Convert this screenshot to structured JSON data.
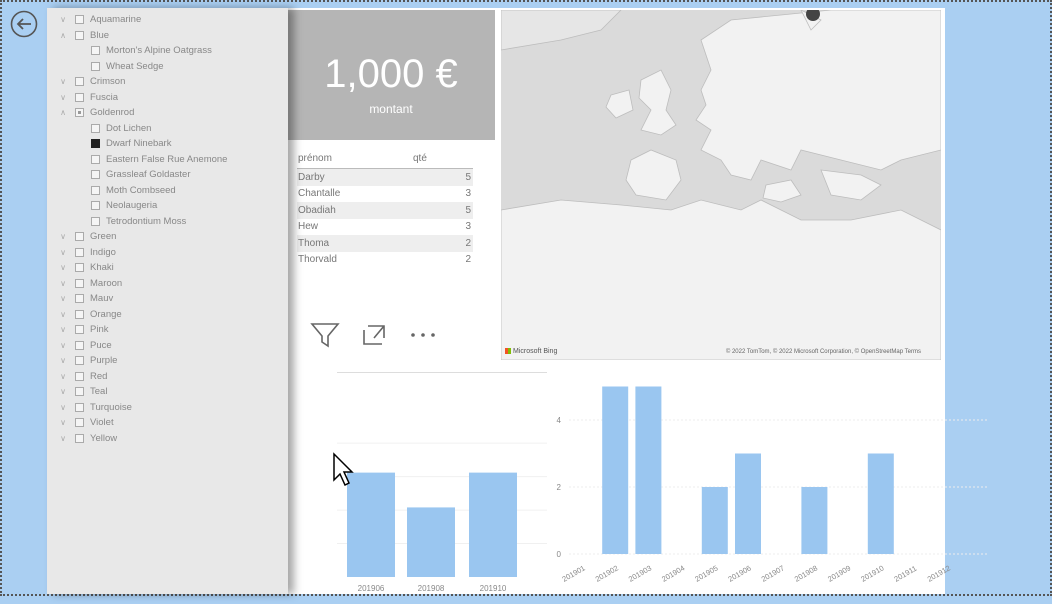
{
  "kpi": {
    "value": "1,000 €",
    "label": "montant"
  },
  "table": {
    "headers": [
      "prénom",
      "qté"
    ],
    "rows": [
      [
        "Darby",
        "5"
      ],
      [
        "Chantalle",
        "3"
      ],
      [
        "Obadiah",
        "5"
      ],
      [
        "Hew",
        "3"
      ],
      [
        "Thoma",
        "2"
      ],
      [
        "Thorvald",
        "2"
      ]
    ]
  },
  "map": {
    "credit": "Microsoft Bing",
    "copyright": "© 2022 TomTom, © 2022 Microsoft Corporation, © OpenStreetMap  Terms"
  },
  "slicer": {
    "items": [
      {
        "label": "Aquamarine",
        "level": 0,
        "state": "off"
      },
      {
        "label": "Blue",
        "level": 0,
        "state": "off",
        "expanded": true
      },
      {
        "label": "Morton's Alpine Oatgrass",
        "level": 1,
        "state": "off"
      },
      {
        "label": "Wheat Sedge",
        "level": 1,
        "state": "off"
      },
      {
        "label": "Crimson",
        "level": 0,
        "state": "off"
      },
      {
        "label": "Fuscia",
        "level": 0,
        "state": "off"
      },
      {
        "label": "Goldenrod",
        "level": 0,
        "state": "partial",
        "expanded": true
      },
      {
        "label": "Dot Lichen",
        "level": 1,
        "state": "off"
      },
      {
        "label": "Dwarf Ninebark",
        "level": 1,
        "state": "on"
      },
      {
        "label": "Eastern False Rue Anemone",
        "level": 1,
        "state": "off"
      },
      {
        "label": "Grassleaf Goldaster",
        "level": 1,
        "state": "off"
      },
      {
        "label": "Moth Combseed",
        "level": 1,
        "state": "off"
      },
      {
        "label": "Neolaugeria",
        "level": 1,
        "state": "off"
      },
      {
        "label": "Tetrodontium Moss",
        "level": 1,
        "state": "off"
      },
      {
        "label": "Green",
        "level": 0,
        "state": "off"
      },
      {
        "label": "Indigo",
        "level": 0,
        "state": "off"
      },
      {
        "label": "Khaki",
        "level": 0,
        "state": "off"
      },
      {
        "label": "Maroon",
        "level": 0,
        "state": "off"
      },
      {
        "label": "Mauv",
        "level": 0,
        "state": "off"
      },
      {
        "label": "Orange",
        "level": 0,
        "state": "off"
      },
      {
        "label": "Pink",
        "level": 0,
        "state": "off"
      },
      {
        "label": "Puce",
        "level": 0,
        "state": "off"
      },
      {
        "label": "Purple",
        "level": 0,
        "state": "off"
      },
      {
        "label": "Red",
        "level": 0,
        "state": "off"
      },
      {
        "label": "Teal",
        "level": 0,
        "state": "off"
      },
      {
        "label": "Turquoise",
        "level": 0,
        "state": "off"
      },
      {
        "label": "Violet",
        "level": 0,
        "state": "off"
      },
      {
        "label": "Yellow",
        "level": 0,
        "state": "off"
      }
    ]
  },
  "chart_data": [
    {
      "type": "bar",
      "categories": [
        "201906",
        "201908",
        "201910"
      ],
      "values": [
        3,
        2,
        3
      ],
      "ylim": [
        0,
        5.5
      ]
    },
    {
      "type": "bar",
      "categories": [
        "201901",
        "201902",
        "201903",
        "201904",
        "201905",
        "201906",
        "201907",
        "201908",
        "201909",
        "201910",
        "201911",
        "201912"
      ],
      "values": [
        0,
        5,
        5,
        0,
        2,
        3,
        0,
        2,
        0,
        3,
        0,
        0
      ],
      "yticks": [
        "0",
        "2",
        "4"
      ],
      "ylim": [
        0,
        5.5
      ]
    }
  ],
  "colors": {
    "bar": "#9ac6f0",
    "background": "#aacff2",
    "slicer": "#e8e8e8"
  }
}
